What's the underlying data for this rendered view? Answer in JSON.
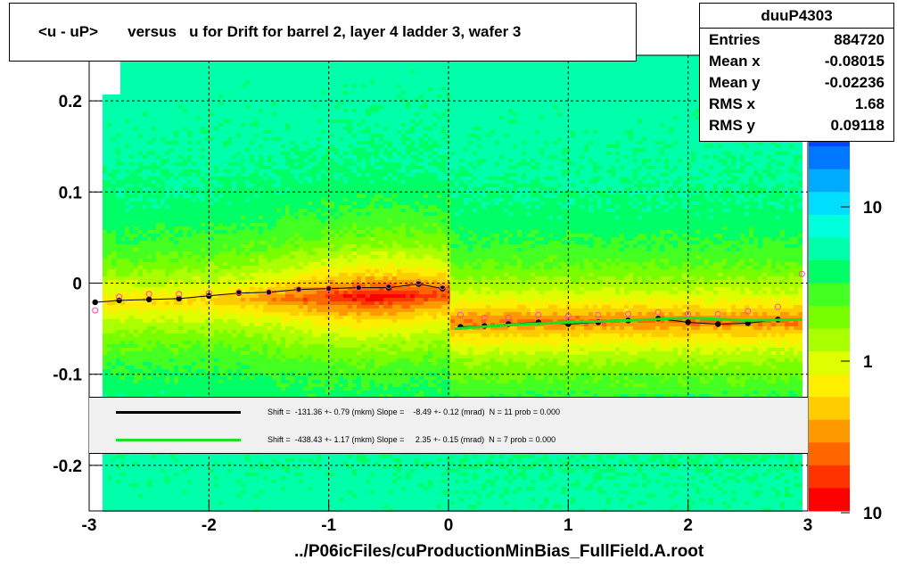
{
  "title": "<u - uP>       versus   u for Drift for barrel 2, layer 4 ladder 3, wafer 3",
  "stats": {
    "name": "duuP4303",
    "rows": [
      {
        "label": "Entries",
        "value": "884720"
      },
      {
        "label": "Mean x",
        "value": "-0.08015"
      },
      {
        "label": "Mean y",
        "value": "-0.02236"
      },
      {
        "label": "RMS x",
        "value": "1.68"
      },
      {
        "label": "RMS y",
        "value": "0.09118"
      }
    ]
  },
  "legend": [
    {
      "color": "#000000",
      "text": "Shift =  -131.36 +- 0.79 (mkm) Slope =    -8.49 +- 0.12 (mrad)  N = 11 prob = 0.000"
    },
    {
      "color": "#22dd22",
      "text": "Shift =  -438.43 +- 1.17 (mkm) Slope =     2.35 +- 0.15 (mrad)  N = 7 prob = 0.000"
    }
  ],
  "footer": "../P06icFiles/cuProductionMinBias_FullField.A.root",
  "chart_data": {
    "type": "heatmap",
    "title": "<u - uP>       versus   u for Drift for barrel 2, layer 4 ladder 3, wafer 3",
    "xlim": [
      -3,
      3
    ],
    "ylim": [
      -0.25,
      0.25
    ],
    "x_ticks": [
      "-3",
      "-2",
      "-1",
      "0",
      "1",
      "2",
      "3"
    ],
    "y_ticks": [
      "-0.2",
      "-0.1",
      "0",
      "0.1",
      "0.2"
    ],
    "z_scale": "log",
    "z_ticks": [
      "1",
      "10",
      "10"
    ],
    "grid": true,
    "series": [
      {
        "name": "profile_black",
        "x": [
          -2.95,
          -2.75,
          -2.5,
          -2.25,
          -2.0,
          -1.75,
          -1.5,
          -1.25,
          -1.0,
          -0.75,
          -0.5,
          -0.25,
          -0.05
        ],
        "y": [
          -0.021,
          -0.019,
          -0.018,
          -0.017,
          -0.014,
          -0.011,
          -0.01,
          -0.007,
          -0.006,
          -0.005,
          -0.005,
          -0.001,
          -0.006
        ]
      },
      {
        "name": "profile_black_right",
        "x": [
          0.1,
          0.3,
          0.5,
          0.75,
          1.0,
          1.25,
          1.5,
          1.75,
          2.0,
          2.25,
          2.5,
          2.75
        ],
        "y": [
          -0.048,
          -0.047,
          -0.045,
          -0.043,
          -0.045,
          -0.043,
          -0.041,
          -0.039,
          -0.043,
          -0.045,
          -0.044,
          -0.04
        ]
      },
      {
        "name": "profile_magenta",
        "x": [
          -2.95,
          -2.75,
          -2.5,
          -2.25,
          -2.0,
          -1.75,
          -1.5,
          -1.25,
          -1.0,
          -0.75,
          -0.5,
          -0.25,
          -0.05,
          0.1,
          0.3,
          0.5,
          0.75,
          1.0,
          1.25,
          1.5,
          1.75,
          2.0,
          2.25,
          2.5,
          2.75,
          2.95
        ],
        "y": [
          -0.03,
          -0.015,
          -0.012,
          -0.012,
          -0.011,
          -0.01,
          -0.01,
          -0.007,
          -0.006,
          -0.005,
          -0.003,
          0.001,
          -0.004,
          -0.035,
          -0.038,
          -0.038,
          -0.035,
          -0.036,
          -0.035,
          -0.034,
          -0.032,
          -0.034,
          -0.034,
          -0.031,
          -0.026,
          0.01
        ]
      },
      {
        "name": "fit_green",
        "x": [
          0.05,
          0.5,
          1.0,
          1.5,
          2.0,
          2.5,
          2.95
        ],
        "y": [
          -0.05,
          -0.046,
          -0.043,
          -0.041,
          -0.038,
          -0.041,
          -0.04
        ]
      }
    ]
  }
}
